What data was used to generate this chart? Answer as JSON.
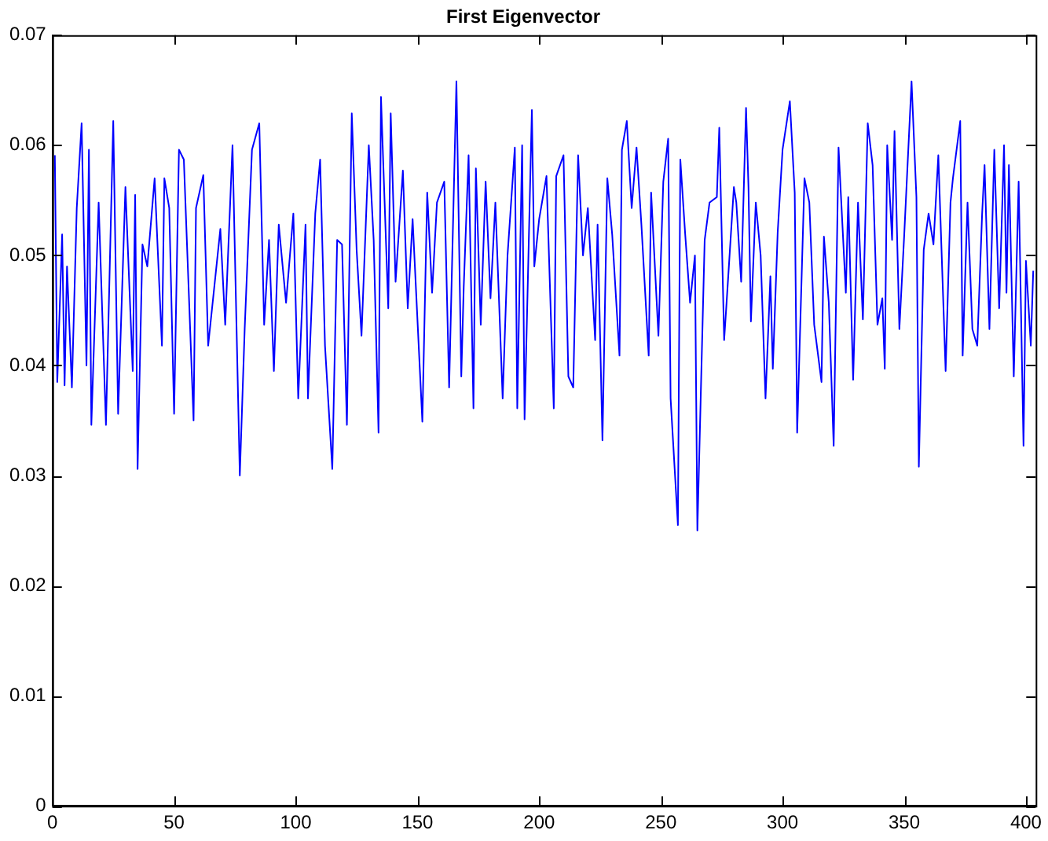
{
  "chart_data": {
    "type": "line",
    "title": "First Eigenvector",
    "xlim": [
      0,
      404
    ],
    "xticks": [
      0,
      50,
      100,
      150,
      200,
      250,
      300,
      350,
      400
    ],
    "ylim": [
      0,
      0.07
    ],
    "yticks": [
      0,
      0.01,
      0.02,
      0.03,
      0.04,
      0.05,
      0.06,
      0.07
    ],
    "grid": false,
    "legend": false,
    "marker": "none",
    "line_style": "solid",
    "series": [
      {
        "color": "#0000ff",
        "x": [
          1,
          2,
          4,
          5,
          6,
          8,
          10,
          12,
          14,
          15,
          16,
          19,
          22,
          25,
          27,
          30,
          33,
          34,
          35,
          37,
          39,
          42,
          45,
          46,
          48,
          50,
          52,
          54,
          58,
          59,
          62,
          64,
          69,
          71,
          74,
          77,
          79,
          82,
          85,
          87,
          89,
          91,
          93,
          96,
          99,
          101,
          104,
          105,
          108,
          110,
          112,
          115,
          117,
          119,
          121,
          123,
          125,
          127,
          130,
          132,
          134,
          135,
          138,
          139,
          141,
          144,
          146,
          148,
          152,
          154,
          156,
          158,
          161,
          163,
          166,
          168,
          169,
          171,
          173,
          174,
          176,
          178,
          180,
          182,
          185,
          187,
          190,
          191,
          193,
          194,
          197,
          198,
          200,
          203,
          206,
          207,
          210,
          212,
          214,
          216,
          218,
          220,
          223,
          224,
          226,
          228,
          230,
          233,
          234,
          236,
          238,
          240,
          242,
          245,
          246,
          249,
          251,
          253,
          254,
          257,
          258,
          260,
          262,
          264,
          265,
          268,
          270,
          273,
          274,
          276,
          277,
          280,
          281,
          283,
          285,
          286,
          287,
          289,
          291,
          293,
          295,
          296,
          298,
          300,
          303,
          305,
          306,
          309,
          311,
          313,
          316,
          317,
          319,
          321,
          323,
          326,
          327,
          329,
          331,
          333,
          335,
          337,
          339,
          341,
          342,
          343,
          345,
          346,
          348,
          350,
          353,
          355,
          356,
          358,
          360,
          362,
          364,
          367,
          369,
          370,
          373,
          374,
          376,
          378,
          380,
          382,
          383,
          385,
          387,
          389,
          391,
          392,
          393,
          395,
          397,
          399,
          400,
          402,
          403
        ],
        "values": [
          0.0591,
          0.0385,
          0.0519,
          0.0382,
          0.049,
          0.038,
          0.0543,
          0.062,
          0.04,
          0.0596,
          0.0346,
          0.0548,
          0.0346,
          0.0622,
          0.0356,
          0.0562,
          0.0395,
          0.0555,
          0.0306,
          0.051,
          0.049,
          0.057,
          0.0418,
          0.057,
          0.0543,
          0.0356,
          0.0596,
          0.0587,
          0.035,
          0.0543,
          0.0573,
          0.0418,
          0.0524,
          0.0437,
          0.06,
          0.03,
          0.0433,
          0.0596,
          0.062,
          0.0437,
          0.0514,
          0.0395,
          0.0528,
          0.0457,
          0.0538,
          0.037,
          0.0528,
          0.037,
          0.0538,
          0.0587,
          0.0418,
          0.0306,
          0.0514,
          0.051,
          0.0346,
          0.0629,
          0.0505,
          0.0427,
          0.06,
          0.0514,
          0.0339,
          0.0644,
          0.0452,
          0.0629,
          0.0476,
          0.0577,
          0.0452,
          0.0533,
          0.0349,
          0.0557,
          0.0466,
          0.0548,
          0.0567,
          0.038,
          0.0658,
          0.039,
          0.0471,
          0.0591,
          0.0361,
          0.0579,
          0.0437,
          0.0567,
          0.0461,
          0.0548,
          0.037,
          0.05,
          0.0598,
          0.0361,
          0.06,
          0.0351,
          0.0632,
          0.049,
          0.0533,
          0.0572,
          0.0361,
          0.0572,
          0.0591,
          0.039,
          0.038,
          0.0591,
          0.05,
          0.0543,
          0.0423,
          0.0528,
          0.0332,
          0.057,
          0.0519,
          0.0409,
          0.0596,
          0.0622,
          0.0543,
          0.0598,
          0.0528,
          0.0409,
          0.0557,
          0.0427,
          0.0567,
          0.0606,
          0.037,
          0.0255,
          0.0587,
          0.0519,
          0.0457,
          0.05,
          0.025,
          0.0514,
          0.0548,
          0.0553,
          0.0616,
          0.0423,
          0.0457,
          0.0562,
          0.0548,
          0.0476,
          0.0634,
          0.0562,
          0.044,
          0.0548,
          0.05,
          0.037,
          0.0481,
          0.0397,
          0.0521,
          0.0596,
          0.064,
          0.0557,
          0.0339,
          0.057,
          0.0548,
          0.0437,
          0.0385,
          0.0517,
          0.0457,
          0.0327,
          0.0598,
          0.0466,
          0.0553,
          0.0387,
          0.0548,
          0.0442,
          0.062,
          0.0582,
          0.0437,
          0.0461,
          0.0397,
          0.06,
          0.0514,
          0.0613,
          0.0433,
          0.0519,
          0.0658,
          0.0553,
          0.0308,
          0.0505,
          0.0538,
          0.051,
          0.0591,
          0.0395,
          0.0548,
          0.057,
          0.0622,
          0.0409,
          0.0548,
          0.0433,
          0.0418,
          0.0538,
          0.0582,
          0.0433,
          0.0596,
          0.0452,
          0.06,
          0.0466,
          0.0582,
          0.039,
          0.0567,
          0.0327,
          0.0495,
          0.0418,
          0.0486
        ]
      }
    ]
  }
}
